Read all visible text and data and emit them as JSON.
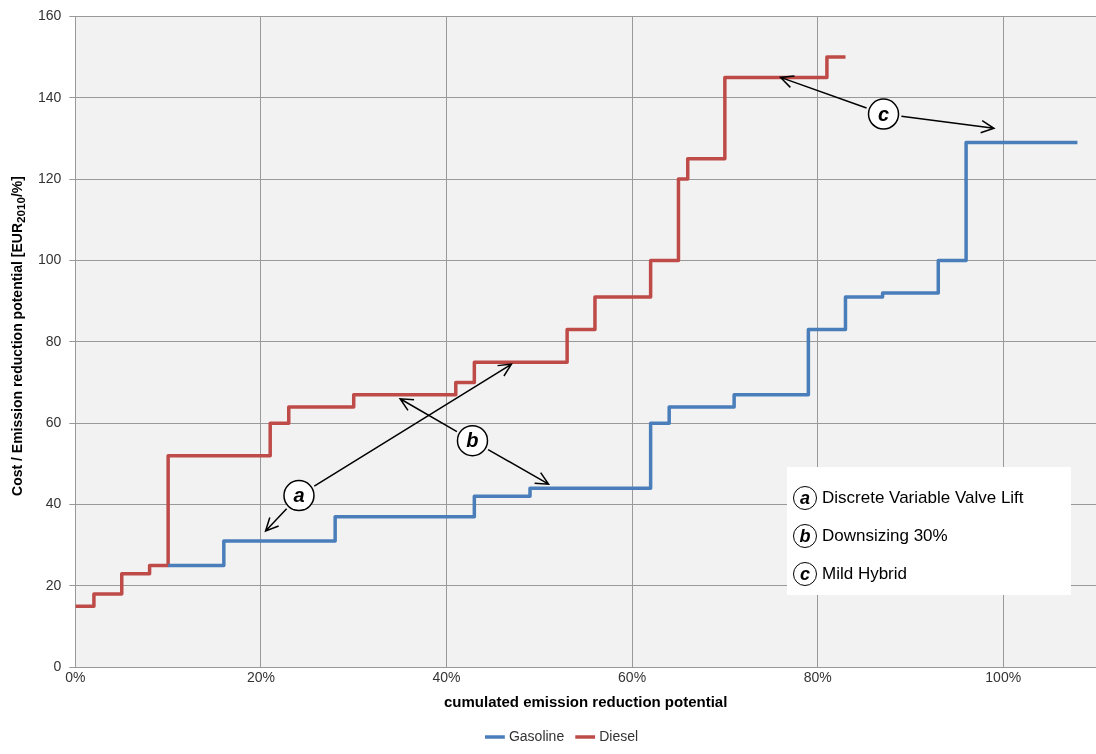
{
  "chart_data": {
    "type": "step",
    "xlabel": "cumulated emission reduction potential",
    "ylabel": "Cost / Emission reduction potential [EUR$_{2010}$/%]",
    "xlim": [
      0,
      110
    ],
    "xticks": [
      {
        "value": 0,
        "label": "0%"
      },
      {
        "value": 20,
        "label": "20%"
      },
      {
        "value": 40,
        "label": "40%"
      },
      {
        "value": 60,
        "label": "60%"
      },
      {
        "value": 80,
        "label": "80%"
      },
      {
        "value": 100,
        "label": "100%"
      }
    ],
    "ylim": [
      0,
      160
    ],
    "yticks": [
      0,
      20,
      40,
      60,
      80,
      100,
      120,
      140,
      160
    ],
    "grid": true,
    "legend": "bottom",
    "marker": "none",
    "line_style": "solid",
    "series": [
      {
        "name": "Gasoline",
        "color": "#4a7ebb",
        "x": [
          10,
          16,
          28,
          43,
          49,
          62,
          64,
          71,
          79,
          83,
          87,
          93,
          96,
          108
        ],
        "values": [
          25,
          31,
          37,
          42,
          44,
          60,
          64,
          67,
          83,
          91,
          92,
          100,
          129,
          129
        ]
      },
      {
        "name": "Diesel",
        "color": "#be4b48",
        "x": [
          0,
          2,
          5,
          8,
          10,
          21,
          23,
          30,
          41,
          43,
          53,
          56,
          62,
          65,
          66,
          70,
          81,
          83
        ],
        "values": [
          15,
          18,
          23,
          25,
          52,
          60,
          64,
          67,
          70,
          75,
          83,
          91,
          100,
          120,
          125,
          145,
          150,
          150
        ]
      }
    ],
    "annotations": [
      {
        "text": "a",
        "x": 24.1,
        "y": 42.2
      },
      {
        "text": "b",
        "x": 42.8,
        "y": 55.7
      },
      {
        "text": "c",
        "x": 87.1,
        "y": 136
      },
      "Discrete Variable Valve Lift",
      "Downsizing 30%",
      "Mild Hybrid"
    ]
  }
}
